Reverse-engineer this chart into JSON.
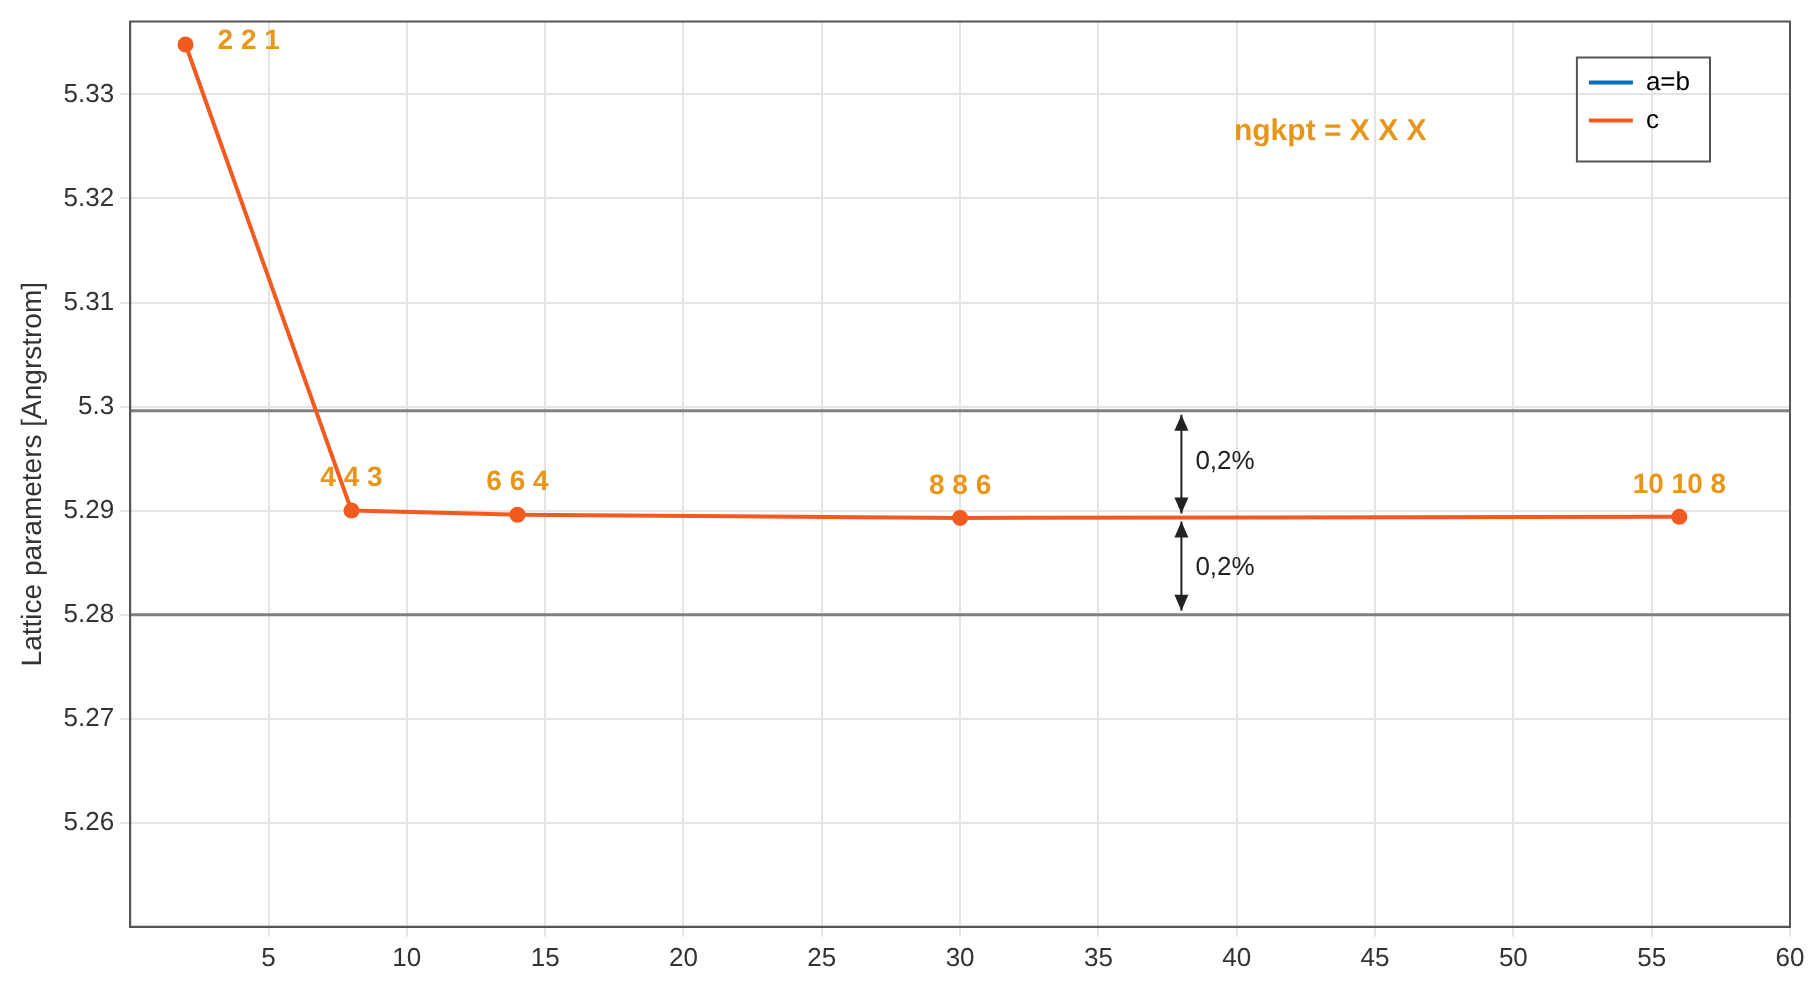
{
  "chart_data": {
    "type": "line",
    "ylabel": "Lattice parameters [Angrstrom]",
    "x": [
      2,
      8,
      14,
      30,
      56
    ],
    "series": [
      {
        "name": "a=b",
        "color": "#0072bd",
        "values": [
          null,
          null,
          null,
          null,
          null
        ]
      },
      {
        "name": "c",
        "color": "#f25a1f",
        "values": [
          5.3348,
          5.29,
          5.2896,
          5.2893,
          5.2894
        ]
      }
    ],
    "xlim": [
      0,
      60
    ],
    "xticks": [
      5,
      10,
      15,
      20,
      25,
      30,
      35,
      40,
      45,
      50,
      55,
      60
    ],
    "ylim": [
      5.25,
      5.337
    ],
    "yticks": [
      5.26,
      5.27,
      5.28,
      5.29,
      5.3,
      5.31,
      5.32,
      5.33
    ],
    "ref_lines": [
      {
        "axis": "y",
        "value": 5.2996,
        "color": "#808080"
      },
      {
        "axis": "y",
        "value": 5.28,
        "color": "#808080"
      }
    ],
    "annotations": [
      "ngkpt = X X X",
      {
        "text": "2 2 1",
        "x": 2,
        "y": 5.3348
      },
      {
        "text": "4 4 3",
        "x": 8,
        "y": 5.29
      },
      {
        "text": "6 6 4",
        "x": 14,
        "y": 5.2896
      },
      {
        "text": "8 8 6",
        "x": 30,
        "y": 5.2893
      },
      {
        "text": "10 10 8",
        "x": 56,
        "y": 5.2894
      },
      {
        "text": "0,2%",
        "x": 38,
        "y": 5.2996
      },
      {
        "text": "0,2%",
        "x": 38,
        "y": 5.28
      }
    ],
    "grid": true,
    "legend": "top right",
    "marker": "circle",
    "line_style": "solid"
  }
}
